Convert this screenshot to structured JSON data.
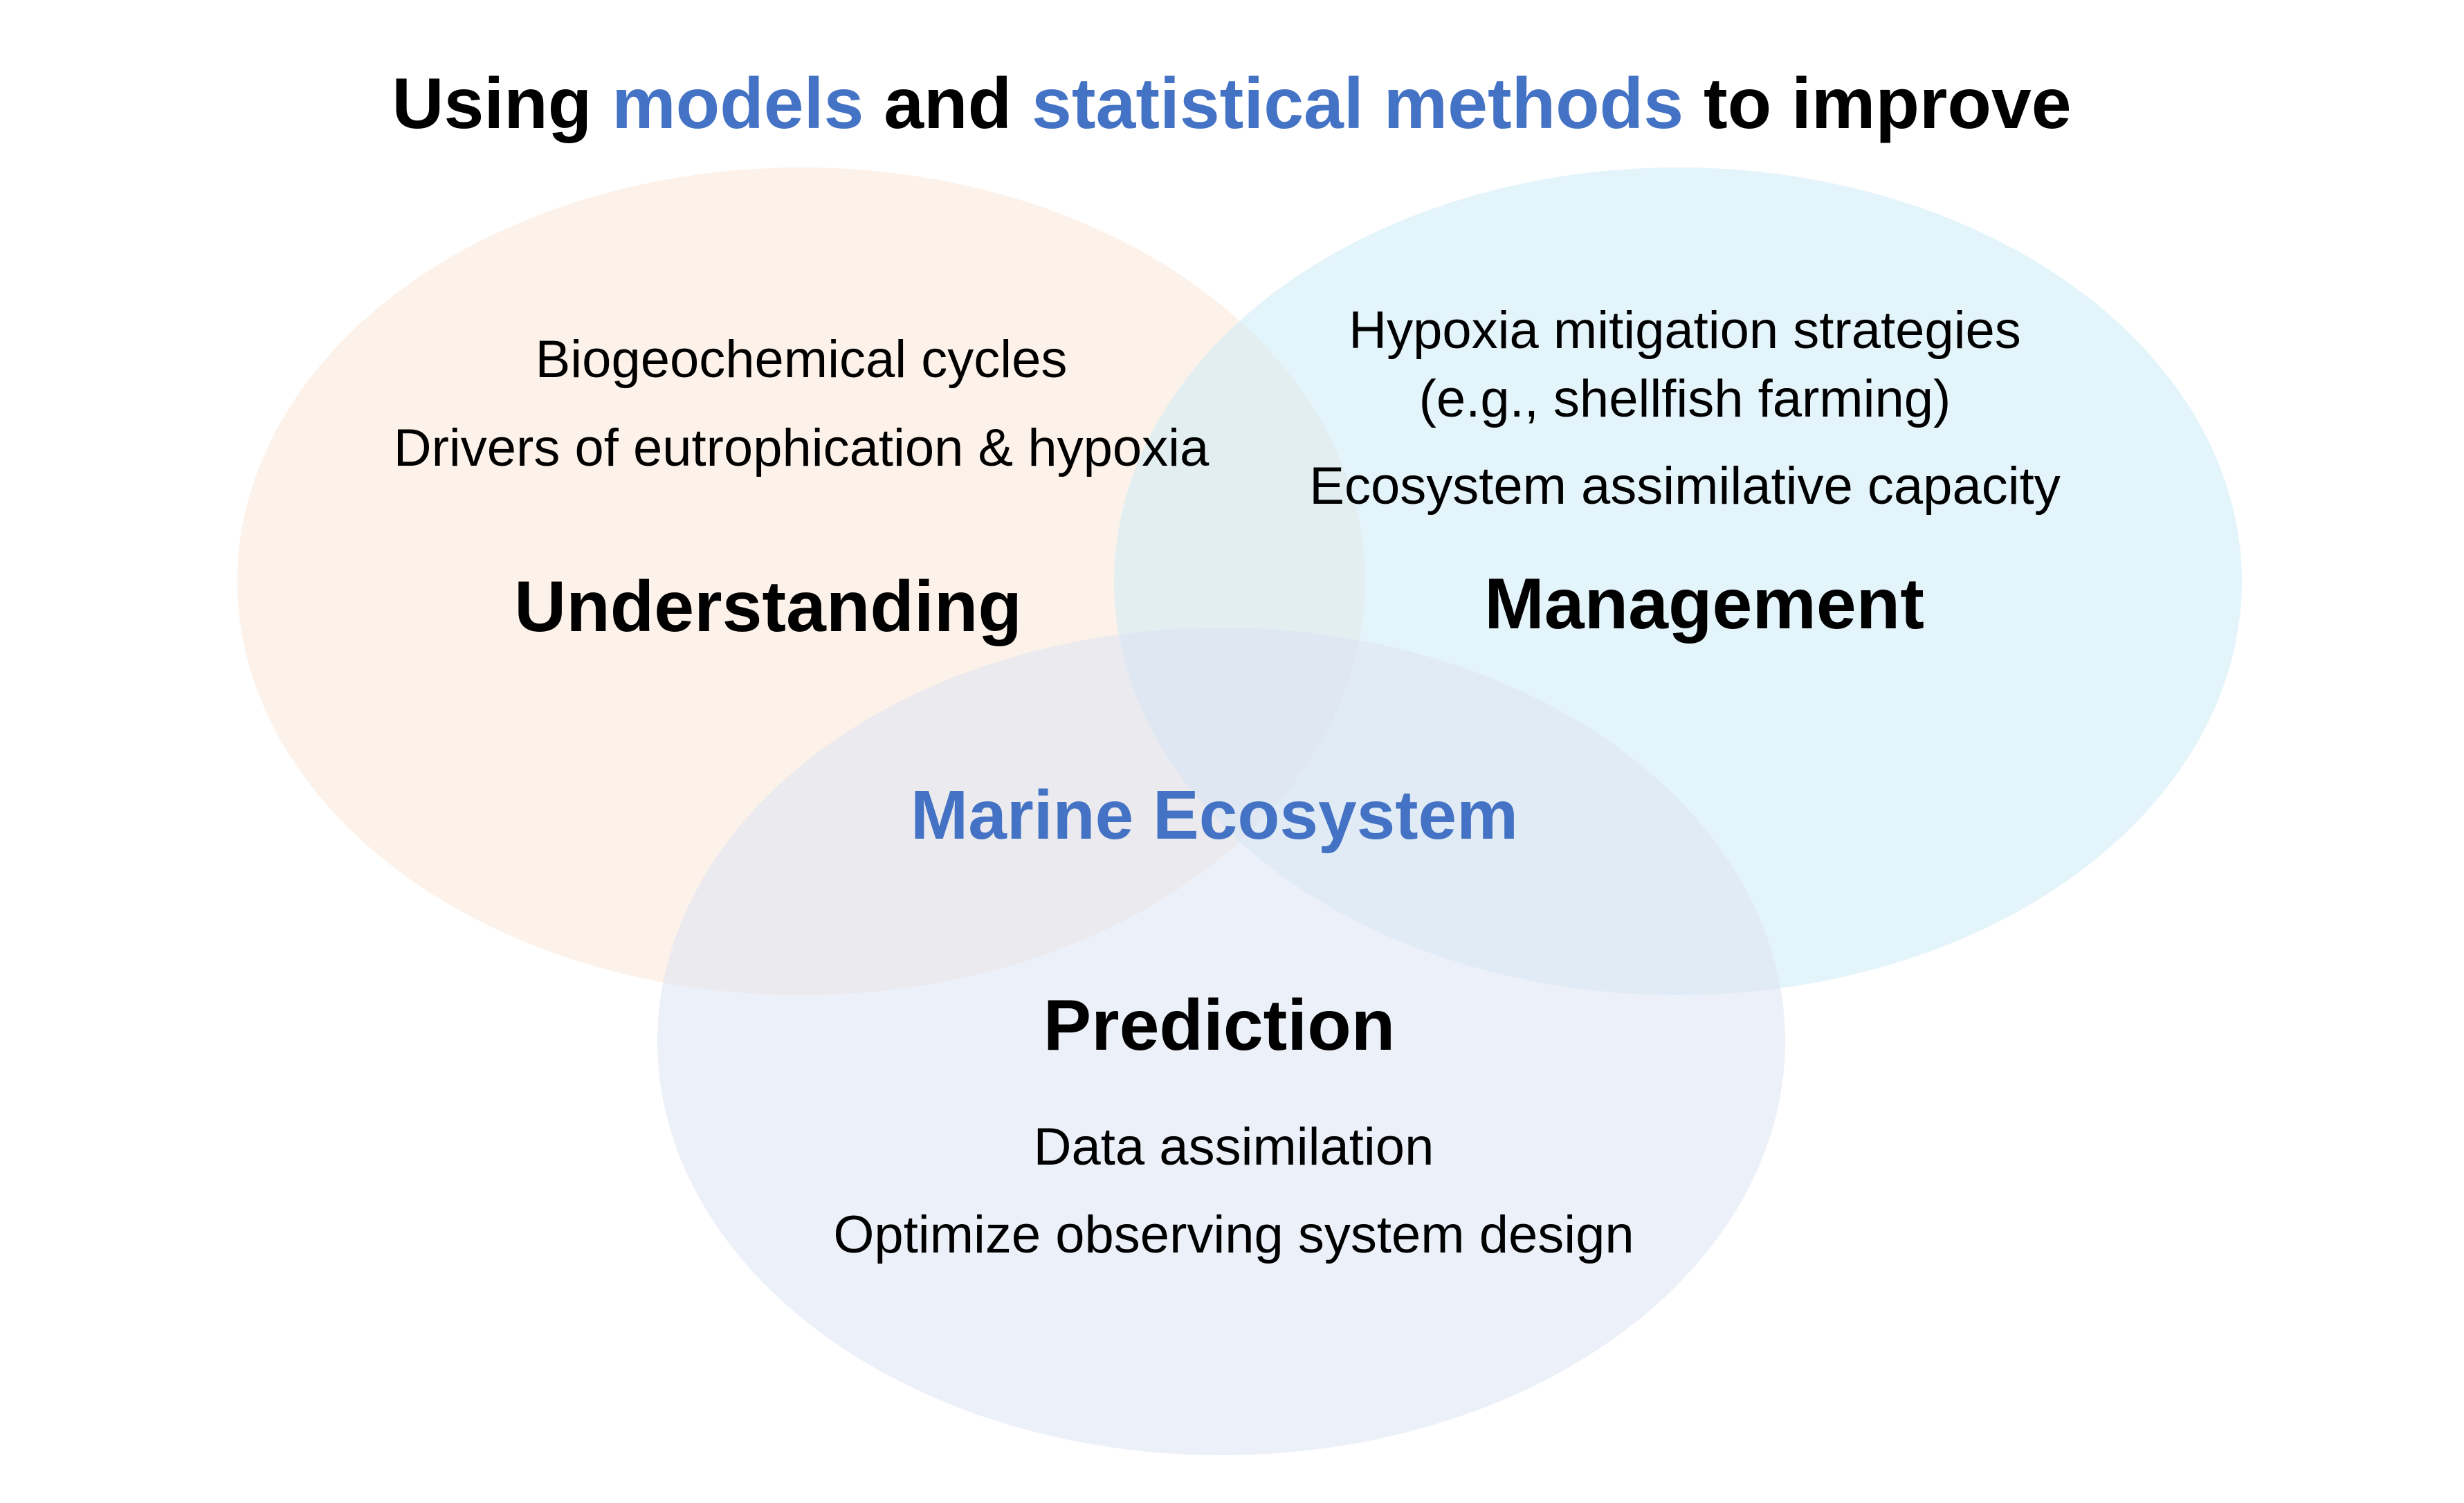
{
  "title": {
    "part1": "Using ",
    "highlight1": "models",
    "part2": " and ",
    "highlight2": "statistical methods",
    "part3": " to improve"
  },
  "center_label": "Marine Ecosystem",
  "circles": {
    "understanding": {
      "heading": "Understanding",
      "items": [
        "Biogeochemical cycles",
        "Drivers of eutrophication & hypoxia"
      ]
    },
    "management": {
      "heading": "Management",
      "items": [
        "Hypoxia mitigation strategies",
        "(e.g., shellfish farming)",
        "Ecosystem assimilative capacity"
      ]
    },
    "prediction": {
      "heading": "Prediction",
      "items": [
        "Data assimilation",
        "Optimize observing system design"
      ]
    }
  },
  "colors": {
    "accent_blue": "#4472C4",
    "text": "#000000",
    "understanding_fill": "#FCEADB",
    "management_fill": "#CDEBF8",
    "prediction_fill": "#DCE3F3"
  }
}
